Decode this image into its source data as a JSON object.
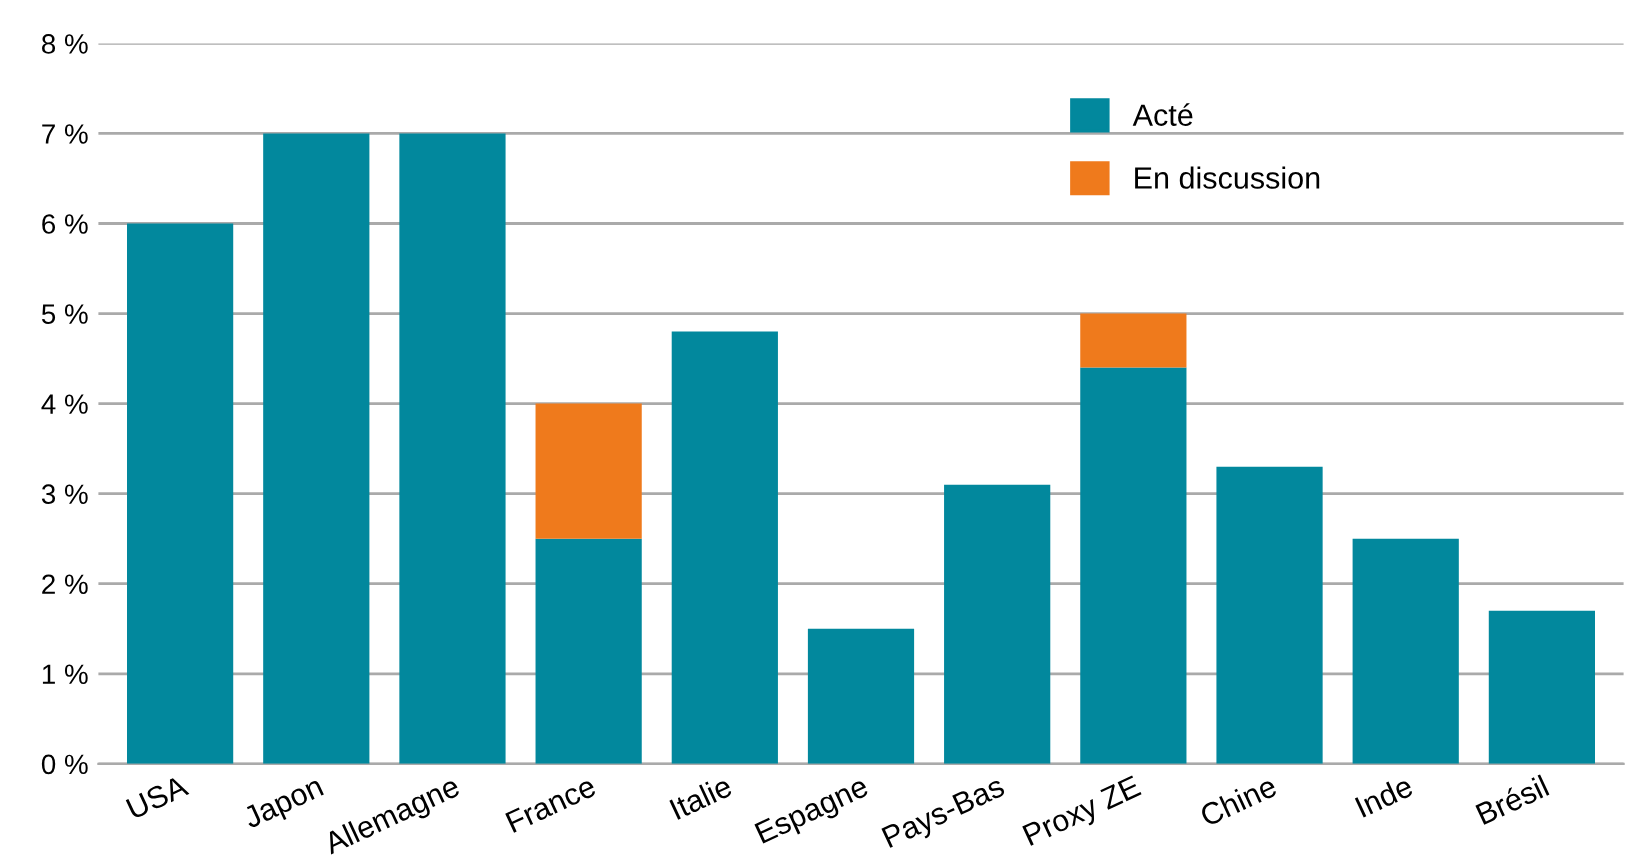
{
  "chart_data": {
    "type": "bar",
    "stacked": true,
    "categories": [
      "USA",
      "Japon",
      "Allemagne",
      "France",
      "Italie",
      "Espagne",
      "Pays-Bas",
      "Proxy ZE",
      "Chine",
      "Inde",
      "Brésil"
    ],
    "series": [
      {
        "name": "Acté",
        "color": "#02889d",
        "values": [
          6.0,
          7.0,
          7.0,
          2.5,
          4.8,
          1.5,
          3.1,
          4.4,
          3.3,
          2.5,
          1.7
        ]
      },
      {
        "name": "En discussion",
        "color": "#ef7a1c",
        "values": [
          null,
          null,
          null,
          1.5,
          null,
          null,
          null,
          0.6,
          null,
          null,
          null
        ]
      }
    ],
    "ylim": [
      0,
      8
    ],
    "yticks": [
      {
        "value": 0,
        "label": "0 %"
      },
      {
        "value": 1,
        "label": "1 %"
      },
      {
        "value": 2,
        "label": "2 %"
      },
      {
        "value": 3,
        "label": "3 %"
      },
      {
        "value": 4,
        "label": "4 %"
      },
      {
        "value": 5,
        "label": "5 %"
      },
      {
        "value": 6,
        "label": "6 %"
      },
      {
        "value": 7,
        "label": "7 %"
      },
      {
        "value": 8,
        "label": "8 %"
      }
    ],
    "grid": "y",
    "legend": "top right"
  }
}
